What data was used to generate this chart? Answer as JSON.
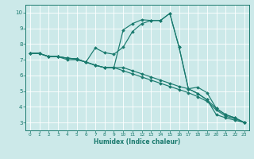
{
  "xlabel": "Humidex (Indice chaleur)",
  "xlim": [
    -0.5,
    23.5
  ],
  "ylim": [
    2.5,
    10.5
  ],
  "xticks": [
    0,
    1,
    2,
    3,
    4,
    5,
    6,
    7,
    8,
    9,
    10,
    11,
    12,
    13,
    14,
    15,
    16,
    17,
    18,
    19,
    20,
    21,
    22,
    23
  ],
  "yticks": [
    3,
    4,
    5,
    6,
    7,
    8,
    9,
    10
  ],
  "bg_color": "#cce9e9",
  "line_color": "#1a7a6e",
  "grid_color": "#ffffff",
  "line1_x": [
    0,
    1,
    2,
    3,
    4,
    5,
    6,
    7,
    8,
    9,
    10,
    11,
    12,
    13,
    14,
    15,
    16,
    17,
    18,
    19,
    20,
    21,
    22,
    23
  ],
  "line1_y": [
    7.4,
    7.4,
    7.2,
    7.2,
    7.0,
    7.0,
    6.85,
    6.65,
    6.5,
    6.5,
    8.9,
    9.3,
    9.55,
    9.5,
    9.5,
    9.95,
    7.8,
    5.15,
    4.85,
    4.45,
    3.5,
    3.3,
    3.15,
    3.0
  ],
  "line2_x": [
    0,
    1,
    2,
    3,
    4,
    5,
    6,
    7,
    8,
    9,
    10,
    11,
    12,
    13,
    14,
    15,
    16,
    17,
    18,
    19,
    20,
    21,
    22,
    23
  ],
  "line2_y": [
    7.4,
    7.4,
    7.2,
    7.2,
    7.1,
    7.05,
    6.85,
    7.75,
    7.45,
    7.35,
    7.8,
    8.8,
    9.3,
    9.5,
    9.5,
    9.95,
    7.8,
    5.15,
    5.25,
    4.9,
    3.9,
    3.5,
    3.3,
    3.0
  ],
  "line3_x": [
    0,
    1,
    2,
    3,
    4,
    5,
    6,
    7,
    8,
    9,
    10,
    11,
    12,
    13,
    14,
    15,
    16,
    17,
    18,
    19,
    20,
    21,
    22,
    23
  ],
  "line3_y": [
    7.4,
    7.4,
    7.2,
    7.2,
    7.1,
    7.05,
    6.85,
    6.65,
    6.5,
    6.5,
    6.5,
    6.3,
    6.1,
    5.9,
    5.7,
    5.5,
    5.3,
    5.15,
    4.85,
    4.45,
    3.9,
    3.5,
    3.3,
    3.0
  ],
  "line4_x": [
    0,
    1,
    2,
    3,
    4,
    5,
    6,
    7,
    8,
    9,
    10,
    11,
    12,
    13,
    14,
    15,
    16,
    17,
    18,
    19,
    20,
    21,
    22,
    23
  ],
  "line4_y": [
    7.4,
    7.4,
    7.2,
    7.2,
    7.1,
    7.05,
    6.85,
    6.65,
    6.5,
    6.5,
    6.3,
    6.1,
    5.9,
    5.7,
    5.5,
    5.3,
    5.1,
    4.9,
    4.65,
    4.35,
    3.8,
    3.4,
    3.25,
    3.0
  ]
}
